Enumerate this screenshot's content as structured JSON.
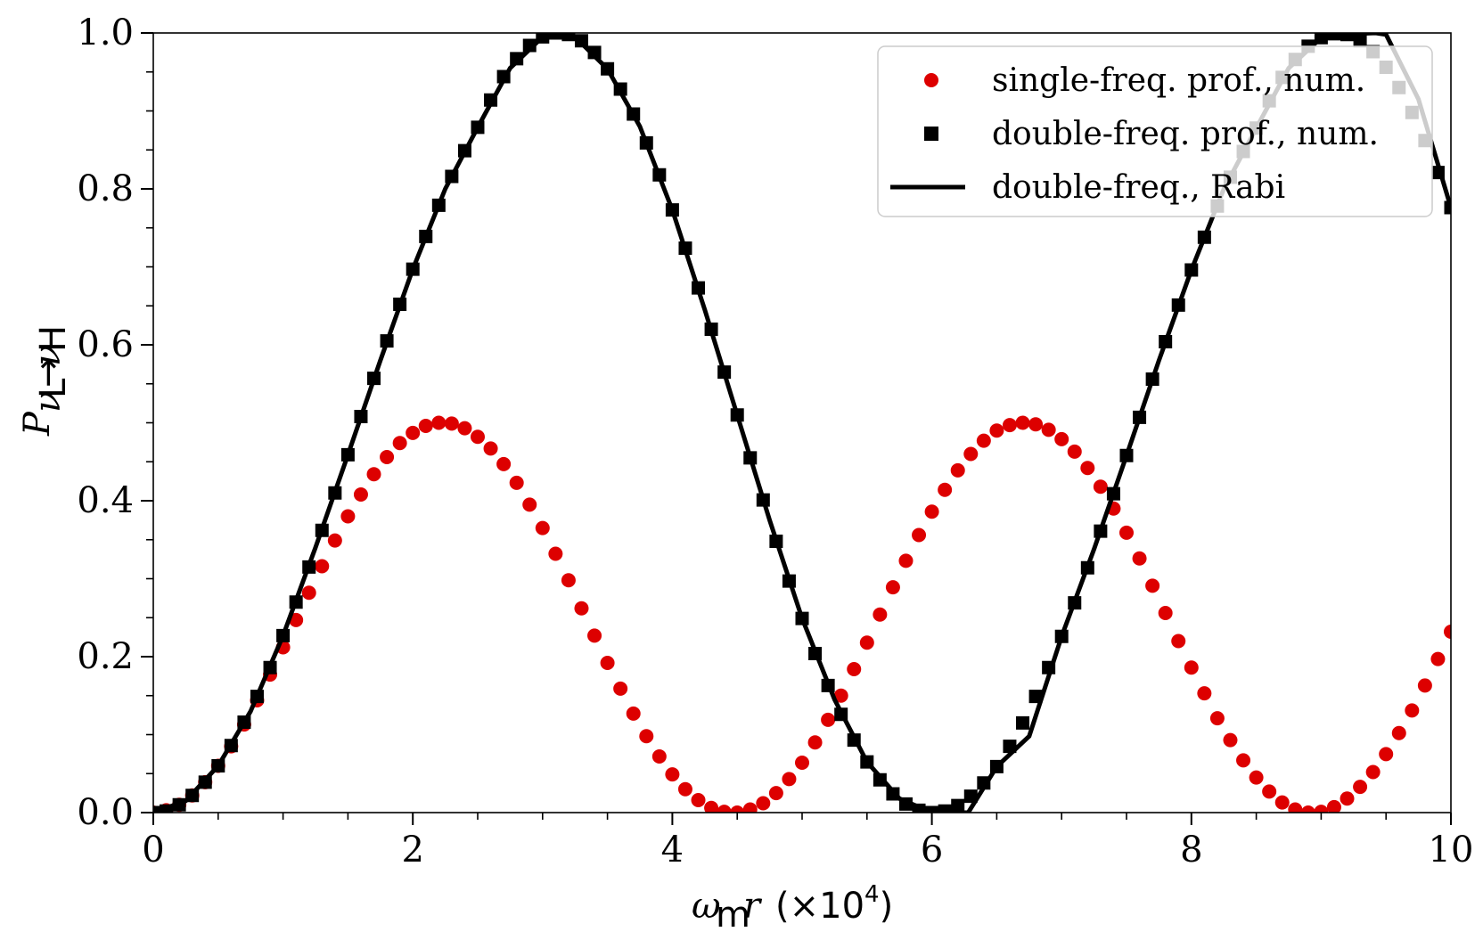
{
  "chart_data": {
    "type": "line",
    "title": "",
    "xlabel": "ω_m r (×10^4)",
    "ylabel": "P_{ν_L→ν_H}",
    "xlim": [
      0,
      10
    ],
    "ylim": [
      0,
      1.0
    ],
    "x_ticks": [
      "0",
      "2",
      "4",
      "6",
      "8",
      "10"
    ],
    "y_ticks": [
      "0.0",
      "0.2",
      "0.4",
      "0.6",
      "0.8",
      "1.0"
    ],
    "x_unit_multiplier": "×10",
    "x_unit_exponent": "4",
    "grid": false,
    "legend_position": "top-right",
    "series": [
      {
        "name": "single-freq. prof., num.",
        "marker": "circle",
        "color": "#dd0000",
        "x": [
          0.0,
          0.1,
          0.2,
          0.3,
          0.4,
          0.5,
          0.6,
          0.7,
          0.8,
          0.9,
          1.0,
          1.1,
          1.2,
          1.3,
          1.4,
          1.5,
          1.6,
          1.7,
          1.8,
          1.9,
          2.0,
          2.1,
          2.2,
          2.3,
          2.4,
          2.5,
          2.6,
          2.7,
          2.8,
          2.9,
          3.0,
          3.1,
          3.2,
          3.3,
          3.4,
          3.5,
          3.6,
          3.7,
          3.8,
          3.9,
          4.0,
          4.1,
          4.2,
          4.3,
          4.4,
          4.5,
          4.6,
          4.7,
          4.8,
          4.9,
          5.0,
          5.1,
          5.2,
          5.3,
          5.4,
          5.5,
          5.6,
          5.7,
          5.8,
          5.9,
          6.0,
          6.1,
          6.2,
          6.3,
          6.4,
          6.5,
          6.6,
          6.7,
          6.8,
          6.9,
          7.0,
          7.1,
          7.2,
          7.3,
          7.4,
          7.5,
          7.6,
          7.7,
          7.8,
          7.9,
          8.0,
          8.1,
          8.2,
          8.3,
          8.4,
          8.5,
          8.6,
          8.7,
          8.8,
          8.9,
          9.0,
          9.1,
          9.2,
          9.3,
          9.4,
          9.5,
          9.6,
          9.7,
          9.8,
          9.9,
          10.0
        ],
        "y": [
          0.0,
          0.003,
          0.01,
          0.022,
          0.039,
          0.06,
          0.085,
          0.113,
          0.144,
          0.177,
          0.212,
          0.247,
          0.282,
          0.316,
          0.349,
          0.38,
          0.408,
          0.434,
          0.456,
          0.474,
          0.487,
          0.496,
          0.5,
          0.499,
          0.493,
          0.482,
          0.467,
          0.447,
          0.423,
          0.395,
          0.365,
          0.332,
          0.298,
          0.262,
          0.227,
          0.192,
          0.159,
          0.127,
          0.098,
          0.072,
          0.049,
          0.03,
          0.016,
          0.006,
          0.001,
          0.0,
          0.004,
          0.012,
          0.025,
          0.043,
          0.064,
          0.09,
          0.119,
          0.15,
          0.184,
          0.218,
          0.254,
          0.289,
          0.323,
          0.356,
          0.386,
          0.414,
          0.439,
          0.46,
          0.477,
          0.49,
          0.497,
          0.5,
          0.498,
          0.491,
          0.479,
          0.463,
          0.442,
          0.418,
          0.39,
          0.359,
          0.326,
          0.291,
          0.256,
          0.22,
          0.186,
          0.153,
          0.121,
          0.093,
          0.067,
          0.045,
          0.027,
          0.013,
          0.004,
          0.0,
          0.001,
          0.007,
          0.018,
          0.033,
          0.052,
          0.075,
          0.102,
          0.131,
          0.163,
          0.197,
          0.232
        ]
      },
      {
        "name": "double-freq. prof., num.",
        "marker": "square",
        "color": "#000000",
        "x": [
          0.0,
          0.1,
          0.2,
          0.3,
          0.4,
          0.5,
          0.6,
          0.7,
          0.8,
          0.9,
          1.0,
          1.1,
          1.2,
          1.3,
          1.4,
          1.5,
          1.6,
          1.7,
          1.8,
          1.9,
          2.0,
          2.1,
          2.2,
          2.3,
          2.4,
          2.5,
          2.6,
          2.7,
          2.8,
          2.9,
          3.0,
          3.1,
          3.2,
          3.3,
          3.4,
          3.5,
          3.6,
          3.7,
          3.8,
          3.9,
          4.0,
          4.1,
          4.2,
          4.3,
          4.4,
          4.5,
          4.6,
          4.7,
          4.8,
          4.9,
          5.0,
          5.1,
          5.2,
          5.3,
          5.4,
          5.5,
          5.6,
          5.7,
          5.8,
          5.9,
          6.0,
          6.1,
          6.2,
          6.3,
          6.4,
          6.5,
          6.6,
          6.7,
          6.8,
          6.9,
          7.0,
          7.1,
          7.2,
          7.3,
          7.4,
          7.5,
          7.6,
          7.7,
          7.8,
          7.9,
          8.0,
          8.1,
          8.2,
          8.3,
          8.4,
          8.5,
          8.6,
          8.7,
          8.8,
          8.9,
          9.0,
          9.1,
          9.2,
          9.3,
          9.4,
          9.5,
          9.6,
          9.7,
          9.8,
          9.9,
          10.0
        ],
        "y": [
          0.0,
          0.002,
          0.01,
          0.022,
          0.039,
          0.06,
          0.086,
          0.116,
          0.149,
          0.186,
          0.227,
          0.27,
          0.315,
          0.362,
          0.41,
          0.459,
          0.508,
          0.557,
          0.605,
          0.652,
          0.697,
          0.739,
          0.779,
          0.816,
          0.849,
          0.879,
          0.914,
          0.944,
          0.967,
          0.984,
          0.995,
          1.0,
          0.998,
          0.99,
          0.975,
          0.954,
          0.928,
          0.896,
          0.859,
          0.818,
          0.773,
          0.724,
          0.673,
          0.62,
          0.565,
          0.51,
          0.455,
          0.401,
          0.348,
          0.297,
          0.249,
          0.204,
          0.163,
          0.126,
          0.093,
          0.065,
          0.042,
          0.024,
          0.011,
          0.003,
          0.0,
          0.002,
          0.009,
          0.021,
          0.038,
          0.059,
          0.085,
          0.115,
          0.149,
          0.186,
          0.226,
          0.269,
          0.314,
          0.361,
          0.409,
          0.458,
          0.507,
          0.556,
          0.604,
          0.651,
          0.696,
          0.738,
          0.778,
          0.815,
          0.848,
          0.878,
          0.913,
          0.943,
          0.966,
          0.983,
          0.994,
          0.999,
          0.998,
          0.99,
          0.976,
          0.956,
          0.93,
          0.898,
          0.862,
          0.821,
          0.776
        ]
      },
      {
        "name": "double-freq., Rabi",
        "marker": "line",
        "color": "#000000",
        "x": [
          0.0,
          0.25,
          0.5,
          0.75,
          1.0,
          1.25,
          1.5,
          1.75,
          2.0,
          2.25,
          2.5,
          2.75,
          3.0,
          3.14,
          3.25,
          3.5,
          3.75,
          4.0,
          4.25,
          4.5,
          4.75,
          5.0,
          5.25,
          5.5,
          5.75,
          6.0,
          6.28,
          6.5,
          6.75,
          7.0,
          7.25,
          7.5,
          7.75,
          8.0,
          8.25,
          8.5,
          8.75,
          9.0,
          9.25,
          9.42,
          9.5,
          9.75,
          10.0
        ],
        "y": [
          0.0,
          0.015,
          0.06,
          0.13,
          0.227,
          0.34,
          0.459,
          0.58,
          0.697,
          0.8,
          0.879,
          0.955,
          0.995,
          1.0,
          0.995,
          0.954,
          0.88,
          0.773,
          0.645,
          0.51,
          0.375,
          0.249,
          0.145,
          0.065,
          0.018,
          0.0,
          0.0,
          0.059,
          0.098,
          0.226,
          0.338,
          0.458,
          0.58,
          0.696,
          0.8,
          0.878,
          0.955,
          0.994,
          0.999,
          1.0,
          0.998,
          0.915,
          0.776
        ]
      }
    ]
  }
}
